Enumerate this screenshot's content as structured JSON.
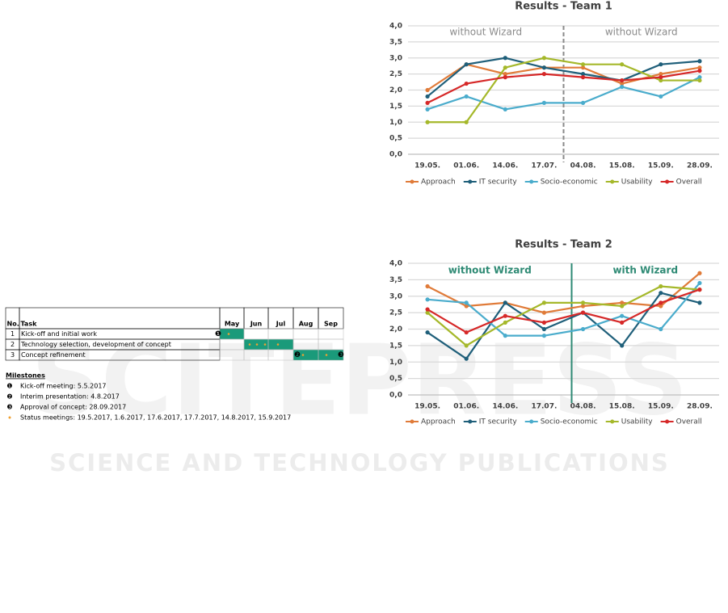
{
  "chart_data": [
    {
      "type": "line",
      "title": "Results - Team 1",
      "categories": [
        "19.05.",
        "01.06.",
        "14.06.",
        "17.07.",
        "04.08.",
        "15.08.",
        "15.09.",
        "28.09."
      ],
      "series": [
        {
          "name": "Approach",
          "color": "#e07b39",
          "values": [
            2.0,
            2.8,
            2.5,
            2.7,
            2.7,
            2.2,
            2.5,
            2.7
          ]
        },
        {
          "name": "IT security",
          "color": "#1f5f7a",
          "values": [
            1.8,
            2.8,
            3.0,
            2.7,
            2.5,
            2.3,
            2.8,
            2.9
          ]
        },
        {
          "name": "Socio-economic",
          "color": "#4aaccc",
          "values": [
            1.4,
            1.8,
            1.4,
            1.6,
            1.6,
            2.1,
            1.8,
            2.4
          ]
        },
        {
          "name": "Usability",
          "color": "#a5b82a",
          "values": [
            1.0,
            1.0,
            2.7,
            3.0,
            2.8,
            2.8,
            2.3,
            2.3
          ]
        },
        {
          "name": "Overall",
          "color": "#d62828",
          "values": [
            1.6,
            2.2,
            2.4,
            2.5,
            2.4,
            2.3,
            2.4,
            2.6
          ]
        }
      ],
      "ylim": [
        0,
        4
      ],
      "yticks": [
        {
          "value": 0,
          "label": "0,0"
        },
        {
          "value": 0.5,
          "label": "0,5"
        },
        {
          "value": 1,
          "label": "1,0"
        },
        {
          "value": 1.5,
          "label": "1,5"
        },
        {
          "value": 2,
          "label": "2,0"
        },
        {
          "value": 2.5,
          "label": "2,5"
        },
        {
          "value": 3,
          "label": "3,0"
        },
        {
          "value": 3.5,
          "label": "3,5"
        },
        {
          "value": 4,
          "label": "4,0"
        }
      ],
      "grid": true,
      "legend": "bottom",
      "annotations": [
        "without Wizard",
        "without Wizard"
      ],
      "annotation_color": "#8a8a8a",
      "divider": "dashed"
    },
    {
      "type": "line",
      "title": "Results - Team 2",
      "categories": [
        "19.05.",
        "01.06.",
        "14.06.",
        "17.07.",
        "04.08.",
        "15.08.",
        "15.09.",
        "28.09."
      ],
      "series": [
        {
          "name": "Approach",
          "color": "#e07b39",
          "values": [
            3.3,
            2.7,
            2.8,
            2.5,
            2.7,
            2.8,
            2.7,
            3.7
          ]
        },
        {
          "name": "IT security",
          "color": "#1f5f7a",
          "values": [
            1.9,
            1.1,
            2.8,
            2.0,
            2.5,
            1.5,
            3.1,
            2.8
          ]
        },
        {
          "name": "Socio-economic",
          "color": "#4aaccc",
          "values": [
            2.9,
            2.8,
            1.8,
            1.8,
            2.0,
            2.4,
            2.0,
            3.4
          ]
        },
        {
          "name": "Usability",
          "color": "#a5b82a",
          "values": [
            2.5,
            1.5,
            2.2,
            2.8,
            2.8,
            2.7,
            3.3,
            3.2
          ]
        },
        {
          "name": "Overall",
          "color": "#d62828",
          "values": [
            2.6,
            1.9,
            2.4,
            2.2,
            2.5,
            2.2,
            2.8,
            3.2
          ]
        }
      ],
      "ylim": [
        0,
        4
      ],
      "yticks": [
        {
          "value": 0,
          "label": "0,0"
        },
        {
          "value": 0.5,
          "label": "0,5"
        },
        {
          "value": 1,
          "label": "1,0"
        },
        {
          "value": 1.5,
          "label": "1,5"
        },
        {
          "value": 2,
          "label": "2,0"
        },
        {
          "value": 2.5,
          "label": "2,5"
        },
        {
          "value": 3,
          "label": "3,0"
        },
        {
          "value": 3.5,
          "label": "3,5"
        },
        {
          "value": 4,
          "label": "4,0"
        }
      ],
      "grid": true,
      "legend": "bottom",
      "annotations": [
        "without Wizard",
        "with Wizard"
      ],
      "annotation_color": "#2e8a74",
      "divider": "solid"
    }
  ],
  "gantt": {
    "headers": [
      "No.",
      "Task",
      "May",
      "Jun",
      "Jul",
      "Aug",
      "Sep"
    ],
    "rows": [
      [
        "1",
        "Kick-off and initial work"
      ],
      [
        "2",
        "Technology selection, development of concept"
      ],
      [
        "3",
        "Concept refinement"
      ]
    ]
  },
  "milestones": {
    "title": "Milestones",
    "items": [
      {
        "marker": "❶",
        "text": "Kick-off meeting: 5.5.2017"
      },
      {
        "marker": "❷",
        "text": "Interim presentation: 4.8.2017"
      },
      {
        "marker": "❸",
        "text": "Approval of concept: 28.09.2017"
      },
      {
        "text": "Status meetings: 19.5.2017, 1.6.2017, 17.6.2017, 17.7.2017, 14.8.2017, 15.9.2017"
      }
    ]
  },
  "watermark": {
    "logo": "SCITEPRESS",
    "subtitle": "SCIENCE AND TECHNOLOGY PUBLICATIONS"
  }
}
